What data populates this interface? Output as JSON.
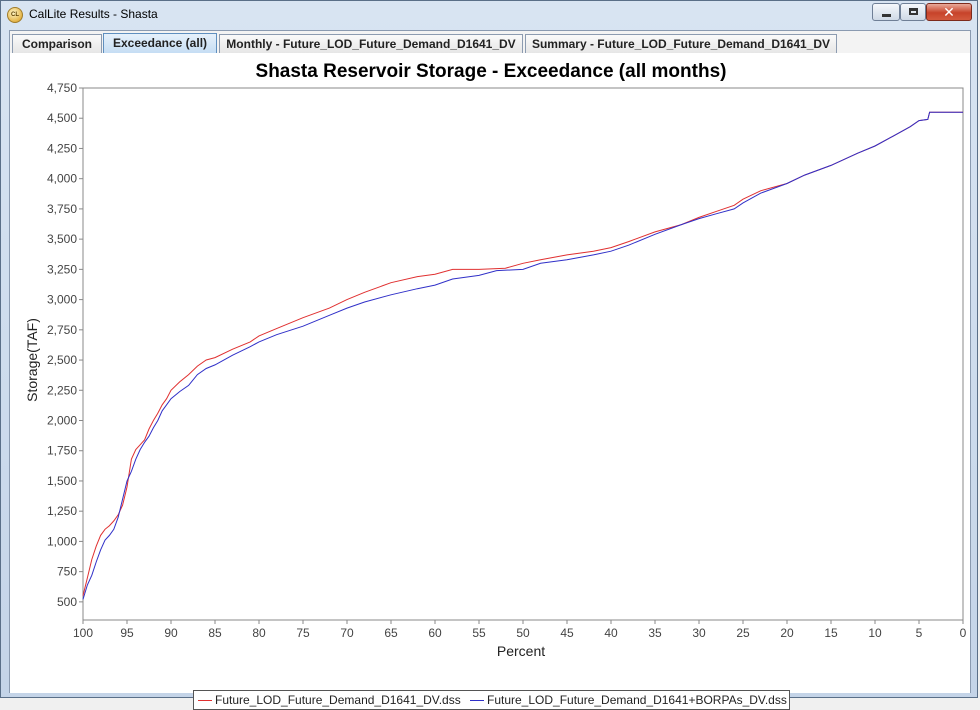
{
  "window": {
    "title": "CalLite Results - Shasta",
    "icon_label": "CL",
    "close_glyph": "✕"
  },
  "tabs": [
    {
      "label": "Comparison",
      "active": false
    },
    {
      "label": "Exceedance (all)",
      "active": true
    },
    {
      "label": "Monthly - Future_LOD_Future_Demand_D1641_DV",
      "active": false
    },
    {
      "label": "Summary - Future_LOD_Future_Demand_D1641_DV",
      "active": false
    }
  ],
  "chart_data": {
    "type": "line",
    "title": "Shasta Reservoir Storage - Exceedance (all months)",
    "xlabel": "Percent",
    "ylabel": "Storage(TAF)",
    "xlim": [
      100,
      0
    ],
    "ylim": [
      350,
      4750
    ],
    "xticks": [
      100,
      95,
      90,
      85,
      80,
      75,
      70,
      65,
      60,
      55,
      50,
      45,
      40,
      35,
      30,
      25,
      20,
      15,
      10,
      5,
      0
    ],
    "yticks": [
      500,
      750,
      1000,
      1250,
      1500,
      1750,
      2000,
      2250,
      2500,
      2750,
      3000,
      3250,
      3500,
      3750,
      4000,
      4250,
      4500,
      4750
    ],
    "ytick_labels": [
      "500",
      "750",
      "1,000",
      "1,250",
      "1,500",
      "1,750",
      "2,000",
      "2,250",
      "2,500",
      "2,750",
      "3,000",
      "3,250",
      "3,500",
      "3,750",
      "4,000",
      "4,250",
      "4,500",
      "4,750"
    ],
    "grid": false,
    "legend_position": "bottom",
    "series": [
      {
        "name": "Future_LOD_Future_Demand_D1641_DV.dss",
        "color": "#e03030",
        "x": [
          100,
          99.5,
          99,
          98.5,
          98,
          97.5,
          97,
          96.5,
          96,
          95.5,
          95,
          94.5,
          94,
          93.5,
          93,
          92.5,
          92,
          91.5,
          91,
          90.5,
          90,
          89,
          88,
          87,
          86,
          85,
          83,
          81,
          80,
          78,
          75,
          72,
          70,
          68,
          65,
          62,
          60,
          58,
          55,
          52,
          50,
          48,
          45,
          42,
          40,
          38,
          35,
          32,
          30,
          28,
          26,
          25,
          23,
          20,
          18,
          15,
          12,
          10,
          8,
          6,
          5,
          4,
          3.8,
          3,
          0
        ],
        "y": [
          550,
          700,
          850,
          960,
          1050,
          1100,
          1130,
          1170,
          1220,
          1300,
          1450,
          1680,
          1760,
          1800,
          1840,
          1930,
          2000,
          2060,
          2130,
          2180,
          2250,
          2320,
          2380,
          2450,
          2500,
          2520,
          2590,
          2650,
          2700,
          2760,
          2850,
          2930,
          3000,
          3060,
          3140,
          3190,
          3210,
          3250,
          3250,
          3260,
          3300,
          3330,
          3370,
          3400,
          3430,
          3480,
          3560,
          3620,
          3680,
          3730,
          3780,
          3830,
          3900,
          3960,
          4030,
          4110,
          4210,
          4270,
          4350,
          4430,
          4480,
          4490,
          4550,
          4550,
          4550
        ]
      },
      {
        "name": "Future_LOD_Future_Demand_D1641+BORPAs_DV.dss",
        "color": "#3030c8",
        "x": [
          100,
          99.5,
          99,
          98.5,
          98,
          97.5,
          97,
          96.5,
          96,
          95.5,
          95,
          94.5,
          94,
          93.5,
          93,
          92.5,
          92,
          91.5,
          91,
          90.5,
          90,
          89,
          88,
          87,
          86,
          85,
          83,
          81,
          80,
          78,
          75,
          72,
          70,
          68,
          65,
          62,
          60,
          58,
          55,
          53,
          50,
          48,
          45,
          42,
          40,
          38,
          35,
          32,
          30,
          28,
          26,
          25,
          23,
          20,
          18,
          15,
          12,
          10,
          8,
          6,
          5,
          4,
          3.8,
          3,
          0
        ],
        "y": [
          520,
          640,
          720,
          830,
          930,
          1010,
          1050,
          1100,
          1200,
          1350,
          1500,
          1580,
          1680,
          1760,
          1820,
          1870,
          1940,
          2000,
          2080,
          2130,
          2180,
          2240,
          2290,
          2380,
          2430,
          2460,
          2540,
          2610,
          2650,
          2710,
          2780,
          2870,
          2930,
          2980,
          3040,
          3090,
          3120,
          3170,
          3200,
          3240,
          3250,
          3300,
          3330,
          3370,
          3400,
          3450,
          3540,
          3620,
          3670,
          3710,
          3750,
          3800,
          3880,
          3960,
          4030,
          4110,
          4210,
          4270,
          4350,
          4430,
          4480,
          4490,
          4550,
          4550,
          4550
        ]
      }
    ]
  }
}
